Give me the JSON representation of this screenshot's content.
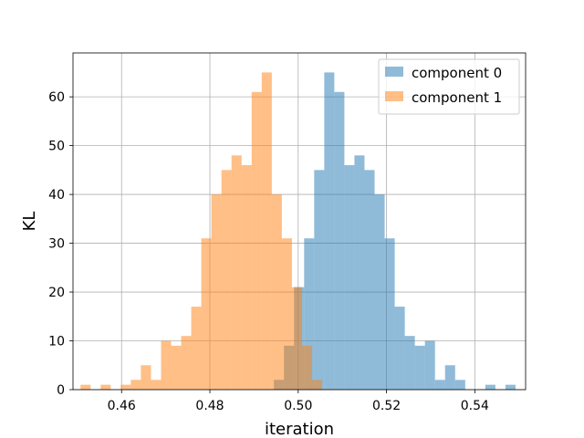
{
  "chart_data": {
    "type": "histogram",
    "xlabel": "iteration",
    "ylabel": "KL",
    "xlim": [
      0.449,
      0.5515
    ],
    "ylim": [
      0,
      69
    ],
    "grid": true,
    "legend_position": "top-right",
    "xticks": [
      "0.46",
      "0.48",
      "0.50",
      "0.52",
      "0.54"
    ],
    "xtick_values": [
      0.46,
      0.48,
      0.5,
      0.52,
      0.54
    ],
    "yticks": [
      "0",
      "10",
      "20",
      "30",
      "40",
      "50",
      "60"
    ],
    "ytick_values": [
      0,
      10,
      20,
      30,
      40,
      50,
      60
    ],
    "series": [
      {
        "name": "component 0",
        "color": "#1f77b4",
        "alpha": 0.5,
        "bin_start": 0.4945,
        "bin_width": 0.00228,
        "counts": [
          2,
          9,
          21,
          31,
          45,
          65,
          61,
          46,
          48,
          45,
          40,
          31,
          17,
          11,
          9,
          10,
          2,
          5,
          2,
          0,
          0,
          1,
          0,
          1
        ]
      },
      {
        "name": "component 1",
        "color": "#ff7f0e",
        "alpha": 0.5,
        "bin_start": 0.4507,
        "bin_width": 0.00228,
        "counts": [
          1,
          0,
          1,
          0,
          1,
          2,
          5,
          2,
          10,
          9,
          11,
          17,
          31,
          40,
          45,
          48,
          46,
          61,
          65,
          40,
          31,
          21,
          9,
          2
        ]
      }
    ]
  }
}
